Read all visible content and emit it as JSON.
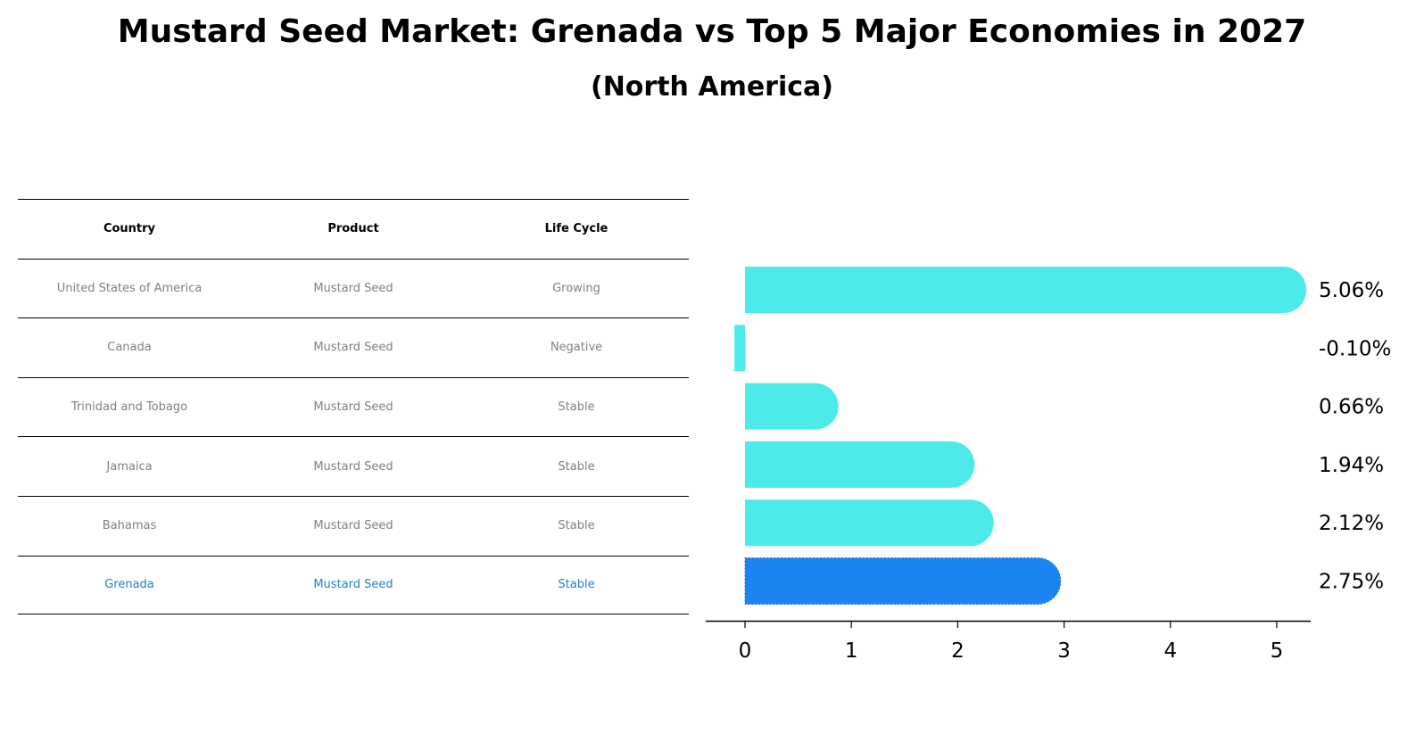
{
  "title": "Mustard Seed Market: Grenada vs Top 5 Major Economies in 2027",
  "subtitle": "(North America)",
  "table": {
    "headers": [
      "Country",
      "Product",
      "Life Cycle"
    ],
    "rows": [
      [
        "United States of America",
        "Mustard Seed",
        "Growing"
      ],
      [
        "Canada",
        "Mustard Seed",
        "Negative"
      ],
      [
        "Trinidad and Tobago",
        "Mustard Seed",
        "Stable"
      ],
      [
        "Jamaica",
        "Mustard Seed",
        "Stable"
      ],
      [
        "Bahamas",
        "Mustard Seed",
        "Stable"
      ],
      [
        "Grenada",
        "Mustard Seed",
        "Stable"
      ]
    ],
    "highlight_row": 5,
    "highlight_color": "#1f7fd4"
  },
  "colors": {
    "bar": "#4cebea",
    "highlight_bar": "#1a85f2",
    "text_muted": "#808080"
  },
  "chart_data": {
    "type": "bar",
    "orientation": "horizontal",
    "title": "Mustard Seed Market: Grenada vs Top 5 Major Economies in 2027",
    "subtitle": "(North America)",
    "categories": [
      "United States of America",
      "Canada",
      "Trinidad and Tobago",
      "Jamaica",
      "Bahamas",
      "Grenada"
    ],
    "values": [
      5.06,
      -0.1,
      0.66,
      1.94,
      2.12,
      2.75
    ],
    "value_labels": [
      "5.06%",
      "-0.10%",
      "0.66%",
      "1.94%",
      "2.12%",
      "2.75%"
    ],
    "highlight": "Grenada",
    "xlabel": "",
    "ylabel": "",
    "xticks": [
      0,
      1,
      2,
      3,
      4,
      5
    ],
    "xlim": [
      -0.37,
      5.3
    ],
    "grid": false,
    "legend": null
  }
}
